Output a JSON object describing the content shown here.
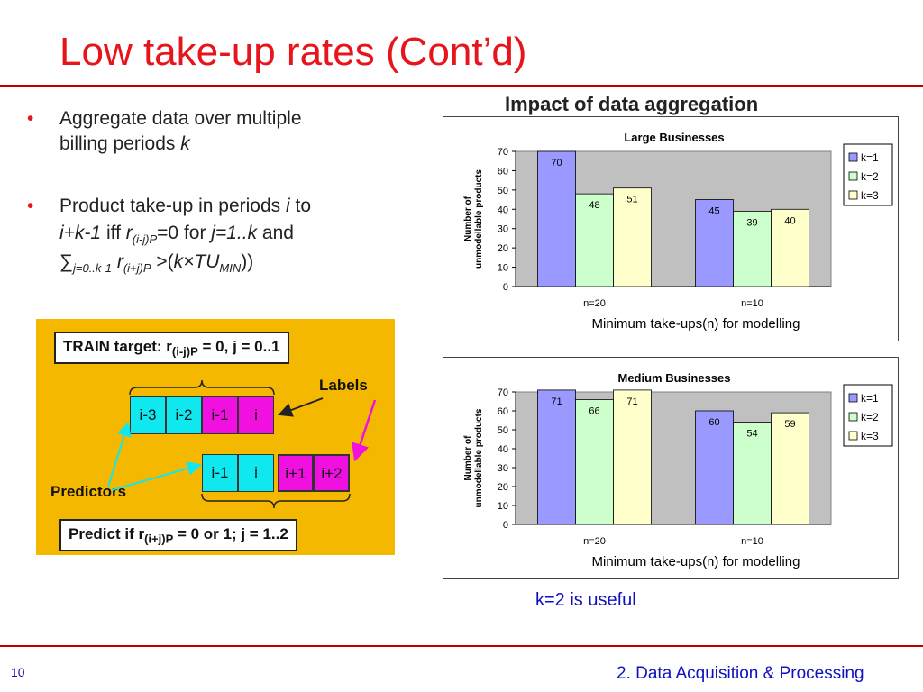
{
  "slide_title": "Low take-up rates (Cont’d)",
  "bullets": {
    "b1_text": "Aggregate data over multiple",
    "b1_line2": "billing periods ",
    "b1_var": "k",
    "b2_text": "Product take-up in periods ",
    "b2_i": "i",
    "b2_to": " to",
    "b2_l2_a": "i+k-1",
    "b2_l2_b": " iff   ",
    "b2_l2_r": "r",
    "b2_l2_sub": "(i-j)P",
    "b2_l2_c": "=0 for ",
    "b2_l2_j": "j=1..k",
    "b2_l2_d": " and",
    "b2_l3_sum": "∑",
    "b2_l3_sub": "j=0..k-1",
    "b2_l3_r": " r",
    "b2_l3_sub2": "(i+j)P",
    "b2_l3_gt": " >(",
    "b2_l3_k": "k×TU",
    "b2_l3_min": "MIN",
    "b2_l3_end": "))"
  },
  "panel": {
    "train_target": "TRAIN target: r",
    "train_sub": "(i-j)P",
    "train_rest": " = 0, j = 0..1",
    "labels": "Labels",
    "predictors": "Predictors",
    "predict": "Predict if r",
    "predict_sub": "(i+j)P",
    "predict_rest": " = 0 or 1; j = 1..2",
    "row1": [
      "i-3",
      "i-2",
      "i-1",
      "i"
    ],
    "row2": [
      "i-1",
      "i",
      "i+1",
      "i+2"
    ]
  },
  "impact_title": "Impact of data aggregation",
  "chart_colors": {
    "k1": "#9999ff",
    "k2": "#ccffcc",
    "k3": "#ffffcc",
    "plot_bg": "#c0c0c0"
  },
  "chart_data": [
    {
      "type": "bar",
      "title": "Large Businesses",
      "xlabel": "Minimum take-ups(n) for modelling",
      "ylabel": [
        "Number of",
        "unmodellable products"
      ],
      "categories": [
        "n=20",
        "n=10"
      ],
      "series": [
        {
          "name": "k=1",
          "values": [
            70,
            45
          ]
        },
        {
          "name": "k=2",
          "values": [
            48,
            39
          ]
        },
        {
          "name": "k=3",
          "values": [
            51,
            40
          ]
        }
      ],
      "ylim": [
        0,
        70
      ],
      "yticks": [
        "0",
        "10",
        "20",
        "30",
        "40",
        "50",
        "60",
        "70"
      ],
      "legend": "right"
    },
    {
      "type": "bar",
      "title": "Medium Businesses",
      "xlabel": "Minimum take-ups(n) for modelling",
      "ylabel": [
        "Number of",
        "unmodellable products"
      ],
      "categories": [
        "n=20",
        "n=10"
      ],
      "series": [
        {
          "name": "k=1",
          "values": [
            71,
            60
          ]
        },
        {
          "name": "k=2",
          "values": [
            66,
            54
          ]
        },
        {
          "name": "k=3",
          "values": [
            71,
            59
          ]
        }
      ],
      "ylim": [
        0,
        70
      ],
      "yticks": [
        "0",
        "10",
        "20",
        "30",
        "40",
        "50",
        "60",
        "70"
      ],
      "legend": "right"
    }
  ],
  "conclusion": "k=2 is useful",
  "page_number": "10",
  "footer": "2. Data Acquisition & Processing"
}
